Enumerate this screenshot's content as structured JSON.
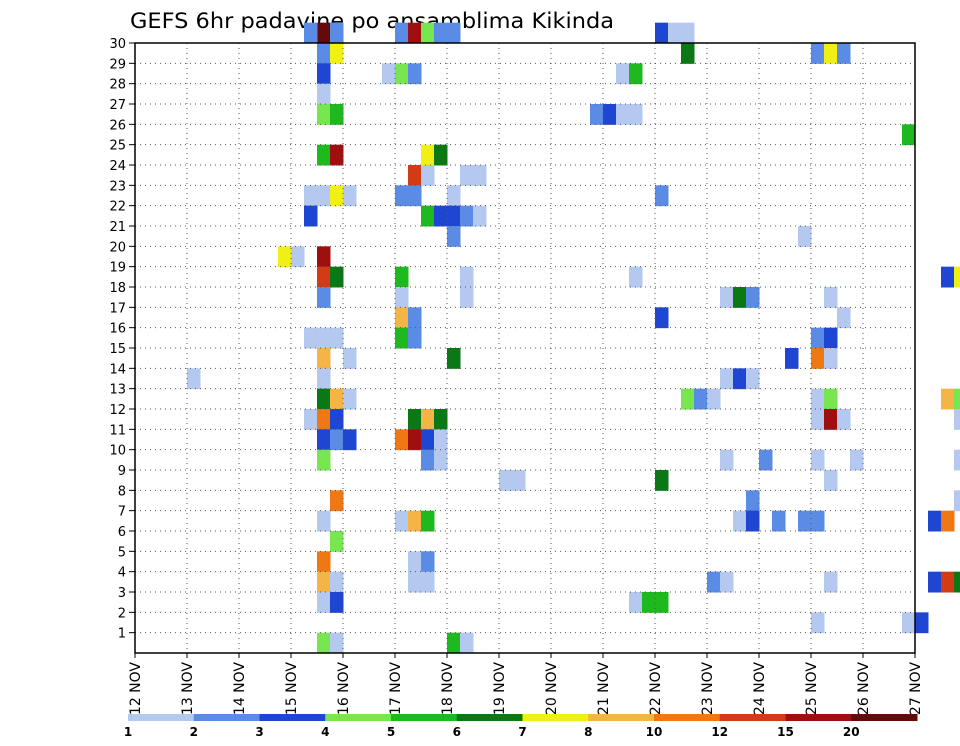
{
  "chart_data": {
    "type": "heatmap",
    "title": "GEFS 6hr padavine po ansamblima Kikinda",
    "xlabel": "",
    "ylabel": "",
    "x_tick_labels": [
      "12 NOV",
      "13 NOV",
      "14 NOV",
      "15 NOV",
      "16 NOV",
      "17 NOV",
      "18 NOV",
      "19 NOV",
      "20 NOV",
      "21 NOV",
      "22 NOV",
      "23 NOV",
      "24 NOV",
      "25 NOV",
      "26 NOV",
      "27 NOV"
    ],
    "x_range": [
      0,
      60
    ],
    "x_unit": "6-hour steps from 12 NOV 00 UTC",
    "y_tick_labels": [
      "1",
      "2",
      "3",
      "4",
      "5",
      "6",
      "7",
      "8",
      "9",
      "10",
      "11",
      "12",
      "13",
      "14",
      "15",
      "16",
      "17",
      "18",
      "19",
      "20",
      "21",
      "22",
      "23",
      "24",
      "25",
      "26",
      "27",
      "28",
      "29",
      "30"
    ],
    "y_range": [
      0,
      30
    ],
    "grid": true,
    "colorbar": {
      "labels": [
        "1",
        "2",
        "3",
        "4",
        "5",
        "6",
        "7",
        "8",
        "10",
        "12",
        "15",
        "20"
      ],
      "colors": [
        "#b4c8f0",
        "#5a8ce6",
        "#1e46d2",
        "#78e650",
        "#1eb91e",
        "#0a7814",
        "#f0f014",
        "#f5b446",
        "#f07814",
        "#d23c14",
        "#a00f0f",
        "#640a0a"
      ]
    },
    "cells": [
      [
        15.5,
        30,
        11
      ],
      [
        15.25,
        30,
        1
      ],
      [
        15.75,
        30,
        1
      ],
      [
        17.0,
        30,
        1
      ],
      [
        17.25,
        30,
        10
      ],
      [
        17.5,
        30,
        3
      ],
      [
        17.75,
        30,
        1
      ],
      [
        18.0,
        30,
        1
      ],
      [
        22.0,
        30,
        2
      ],
      [
        22.25,
        30,
        0
      ],
      [
        22.5,
        30,
        0
      ],
      [
        15.5,
        29,
        1
      ],
      [
        15.75,
        29,
        6
      ],
      [
        22.5,
        29,
        5
      ],
      [
        25.0,
        29,
        1
      ],
      [
        25.25,
        29,
        6
      ],
      [
        25.5,
        29,
        1
      ],
      [
        15.5,
        28,
        2
      ],
      [
        16.75,
        28,
        0
      ],
      [
        17.0,
        28,
        3
      ],
      [
        17.25,
        28,
        1
      ],
      [
        21.25,
        28,
        0
      ],
      [
        21.5,
        28,
        4
      ],
      [
        15.5,
        27,
        0
      ],
      [
        15.5,
        26,
        3
      ],
      [
        15.75,
        26,
        4
      ],
      [
        20.75,
        26,
        1
      ],
      [
        21.0,
        26,
        2
      ],
      [
        21.25,
        26,
        0
      ],
      [
        21.5,
        26,
        0
      ],
      [
        26.75,
        25,
        4
      ],
      [
        15.5,
        24,
        4
      ],
      [
        15.75,
        24,
        10
      ],
      [
        17.5,
        24,
        6
      ],
      [
        17.75,
        24,
        5
      ],
      [
        17.25,
        23,
        9
      ],
      [
        17.5,
        23,
        0
      ],
      [
        18.25,
        23,
        0
      ],
      [
        18.5,
        23,
        0
      ],
      [
        15.25,
        22,
        0
      ],
      [
        15.5,
        22,
        0
      ],
      [
        15.75,
        22,
        6
      ],
      [
        16.0,
        22,
        0
      ],
      [
        17.0,
        22,
        1
      ],
      [
        17.25,
        22,
        1
      ],
      [
        18.0,
        22,
        0
      ],
      [
        22.0,
        22,
        1
      ],
      [
        15.25,
        21,
        2
      ],
      [
        17.5,
        21,
        4
      ],
      [
        17.75,
        21,
        2
      ],
      [
        18.0,
        21,
        2
      ],
      [
        18.25,
        21,
        1
      ],
      [
        18.5,
        21,
        0
      ],
      [
        18.0,
        20,
        1
      ],
      [
        24.75,
        20,
        0
      ],
      [
        15.5,
        19,
        10
      ],
      [
        14.75,
        19,
        6
      ],
      [
        15.0,
        19,
        0
      ],
      [
        15.5,
        18,
        9
      ],
      [
        15.75,
        18,
        5
      ],
      [
        17.0,
        18,
        4
      ],
      [
        18.25,
        18,
        0
      ],
      [
        21.5,
        18,
        0
      ],
      [
        27.5,
        18,
        2
      ],
      [
        27.75,
        18,
        6
      ],
      [
        15.5,
        17,
        1
      ],
      [
        17.0,
        17,
        0
      ],
      [
        18.25,
        17,
        0
      ],
      [
        23.25,
        17,
        0
      ],
      [
        23.5,
        17,
        5
      ],
      [
        23.75,
        17,
        1
      ],
      [
        25.25,
        17,
        0
      ],
      [
        17.0,
        16,
        7
      ],
      [
        17.25,
        16,
        1
      ],
      [
        22.0,
        16,
        2
      ],
      [
        25.5,
        16,
        0
      ],
      [
        15.25,
        15,
        0
      ],
      [
        15.5,
        15,
        0
      ],
      [
        15.75,
        15,
        0
      ],
      [
        17.0,
        15,
        4
      ],
      [
        17.25,
        15,
        1
      ],
      [
        25.0,
        15,
        1
      ],
      [
        25.25,
        15,
        2
      ],
      [
        15.5,
        14,
        7
      ],
      [
        16.0,
        14,
        0
      ],
      [
        18.0,
        14,
        5
      ],
      [
        24.5,
        14,
        2
      ],
      [
        25.0,
        14,
        8
      ],
      [
        25.25,
        14,
        0
      ],
      [
        13.0,
        13,
        0
      ],
      [
        15.5,
        13,
        0
      ],
      [
        23.25,
        13,
        0
      ],
      [
        23.5,
        13,
        2
      ],
      [
        23.75,
        13,
        0
      ],
      [
        15.5,
        12,
        5
      ],
      [
        15.75,
        12,
        7
      ],
      [
        16.0,
        12,
        0
      ],
      [
        22.5,
        12,
        3
      ],
      [
        22.75,
        12,
        1
      ],
      [
        23.0,
        12,
        0
      ],
      [
        25.0,
        12,
        0
      ],
      [
        25.25,
        12,
        3
      ],
      [
        27.5,
        12,
        7
      ],
      [
        27.75,
        12,
        3
      ],
      [
        15.25,
        11,
        0
      ],
      [
        15.5,
        11,
        8
      ],
      [
        15.75,
        11,
        2
      ],
      [
        17.25,
        11,
        5
      ],
      [
        17.5,
        11,
        7
      ],
      [
        17.75,
        11,
        5
      ],
      [
        25.0,
        11,
        0
      ],
      [
        25.25,
        11,
        10
      ],
      [
        25.5,
        11,
        0
      ],
      [
        27.75,
        11,
        0
      ],
      [
        15.5,
        10,
        2
      ],
      [
        15.75,
        10,
        1
      ],
      [
        16.0,
        10,
        2
      ],
      [
        17.0,
        10,
        8
      ],
      [
        17.25,
        10,
        10
      ],
      [
        17.5,
        10,
        2
      ],
      [
        17.75,
        10,
        0
      ],
      [
        15.5,
        9,
        3
      ],
      [
        17.5,
        9,
        1
      ],
      [
        17.75,
        9,
        0
      ],
      [
        23.25,
        9,
        0
      ],
      [
        24.0,
        9,
        1
      ],
      [
        25.0,
        9,
        0
      ],
      [
        25.75,
        9,
        0
      ],
      [
        27.75,
        9,
        0
      ],
      [
        19.0,
        8,
        0
      ],
      [
        19.25,
        8,
        0
      ],
      [
        22.0,
        8,
        5
      ],
      [
        25.25,
        8,
        0
      ],
      [
        15.75,
        7,
        8
      ],
      [
        23.75,
        7,
        1
      ],
      [
        27.75,
        7,
        0
      ],
      [
        15.5,
        6,
        0
      ],
      [
        17.0,
        6,
        0
      ],
      [
        17.25,
        6,
        7
      ],
      [
        17.5,
        6,
        4
      ],
      [
        23.5,
        6,
        0
      ],
      [
        23.75,
        6,
        2
      ],
      [
        24.25,
        6,
        1
      ],
      [
        24.75,
        6,
        1
      ],
      [
        25.0,
        6,
        1
      ],
      [
        27.25,
        6,
        2
      ],
      [
        27.5,
        6,
        8
      ],
      [
        15.75,
        5,
        3
      ],
      [
        15.5,
        4,
        8
      ],
      [
        17.25,
        4,
        0
      ],
      [
        17.5,
        4,
        1
      ],
      [
        15.5,
        3,
        7
      ],
      [
        15.75,
        3,
        0
      ],
      [
        17.25,
        3,
        0
      ],
      [
        17.5,
        3,
        0
      ],
      [
        23.0,
        3,
        1
      ],
      [
        23.25,
        3,
        0
      ],
      [
        25.25,
        3,
        0
      ],
      [
        27.25,
        3,
        2
      ],
      [
        27.5,
        3,
        9
      ],
      [
        27.75,
        3,
        5
      ],
      [
        15.5,
        2,
        0
      ],
      [
        15.75,
        2,
        2
      ],
      [
        21.5,
        2,
        0
      ],
      [
        21.75,
        2,
        4
      ],
      [
        22.0,
        2,
        4
      ],
      [
        25.0,
        1,
        0
      ],
      [
        26.75,
        1,
        0
      ],
      [
        27.0,
        1,
        2
      ],
      [
        15.5,
        0,
        3
      ],
      [
        15.75,
        0,
        0
      ],
      [
        18.0,
        0,
        4
      ],
      [
        18.25,
        0,
        0
      ]
    ]
  }
}
